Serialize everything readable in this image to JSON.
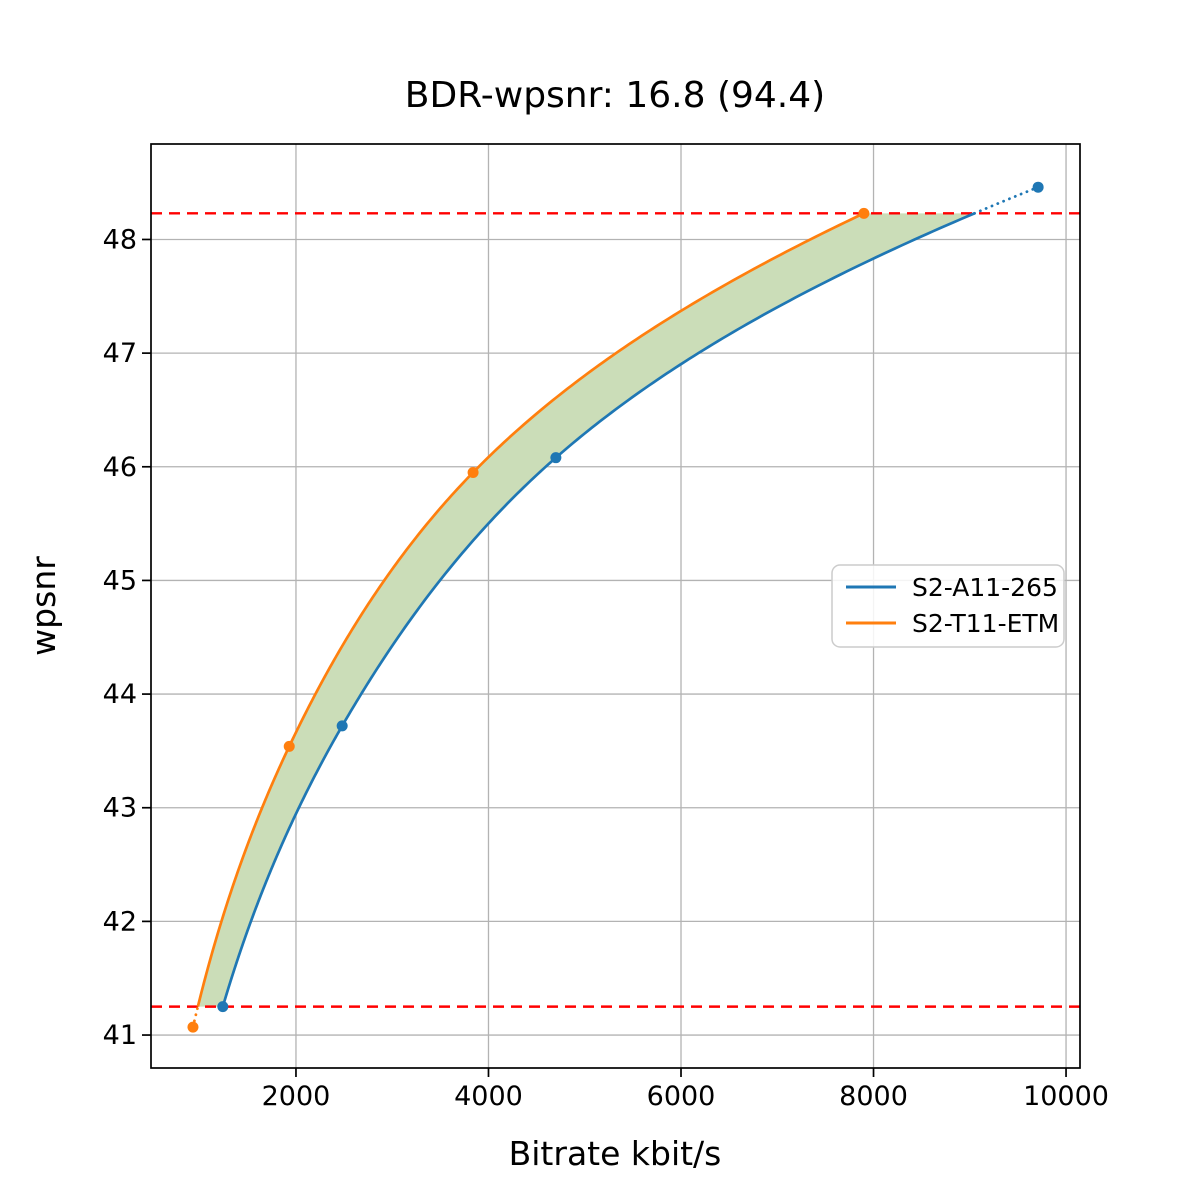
{
  "chart_data": {
    "type": "line",
    "title": "BDR-wpsnr: 16.8 (94.4)",
    "xlabel": "Bitrate kbit/s",
    "ylabel": "wpsnr",
    "xlim": [
      494,
      10145
    ],
    "ylim": [
      40.71,
      48.84
    ],
    "xticks": [
      2000,
      4000,
      6000,
      8000,
      10000
    ],
    "yticks": [
      41,
      42,
      43,
      44,
      45,
      46,
      47,
      48
    ],
    "grid": true,
    "grid_color": "#b3b3b3",
    "legend_position": "center-right",
    "series": [
      {
        "name": "S2-A11-265",
        "color": "#1f77b4",
        "points": [
          [
            1240,
            41.25
          ],
          [
            2480,
            43.72
          ],
          [
            4700,
            46.08
          ],
          [
            9710,
            48.46
          ]
        ]
      },
      {
        "name": "S2-T11-ETM",
        "color": "#ff7f0e",
        "points": [
          [
            930,
            41.07
          ],
          [
            1930,
            43.54
          ],
          [
            3840,
            45.95
          ],
          [
            7900,
            48.23
          ]
        ]
      }
    ],
    "bd_interval": {
      "low": 41.25,
      "high": 48.23,
      "line_color": "#ff0000",
      "fill_color": "#cbddb8"
    }
  }
}
